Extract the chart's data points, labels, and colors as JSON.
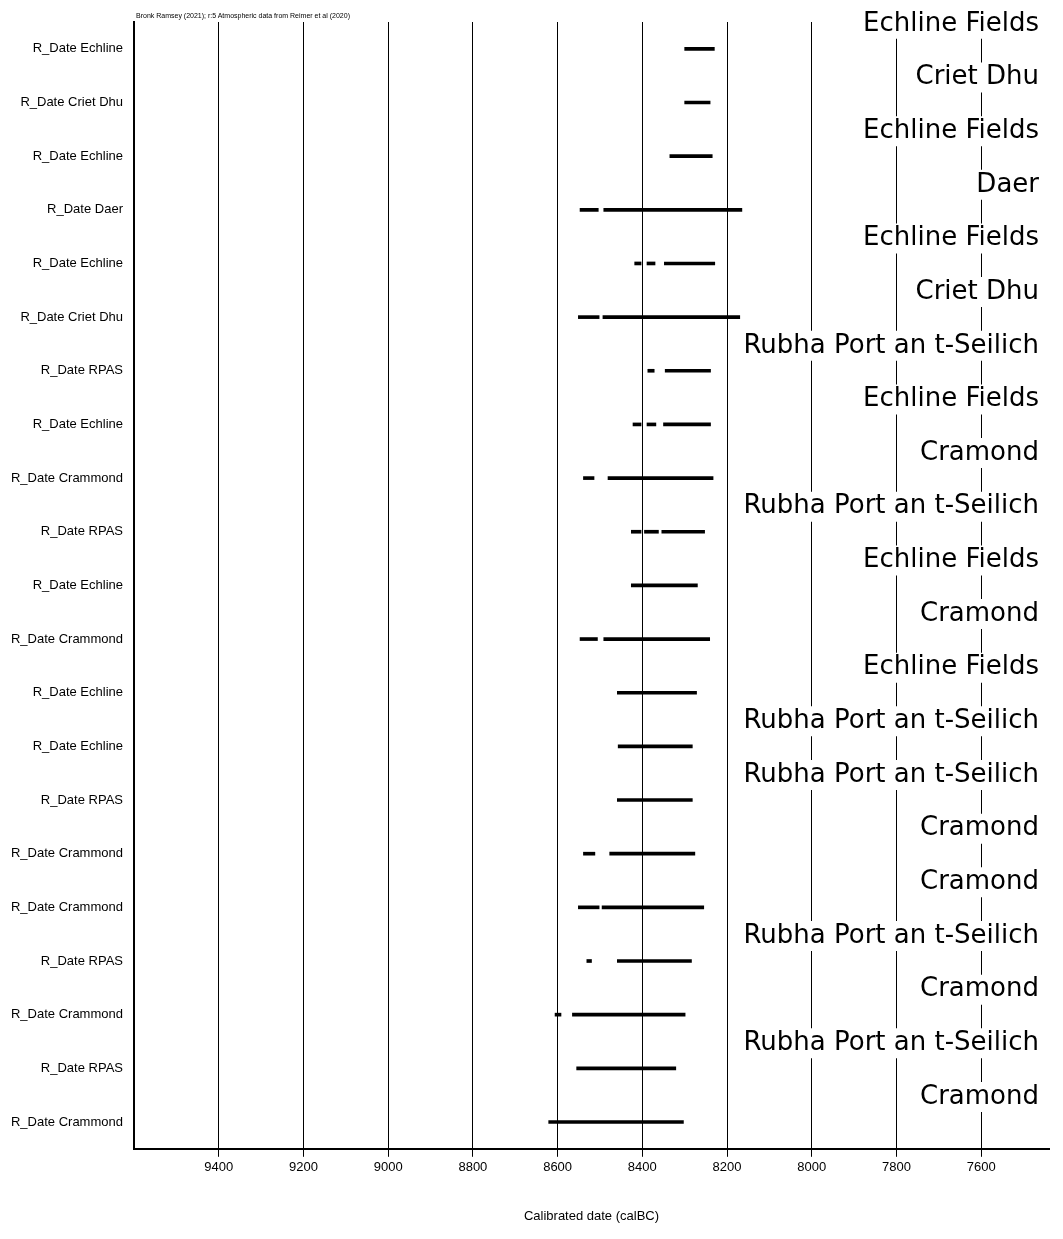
{
  "chart_data": {
    "type": "bar",
    "orientation": "horizontal",
    "xlabel": "Calibrated date (calBC)",
    "categories": [
      "R_Date Echline",
      "R_Date Criet Dhu",
      "R_Date Echline",
      "R_Date Daer",
      "R_Date Echline",
      "R_Date Criet Dhu",
      "R_Date RPAS",
      "R_Date Echline",
      "R_Date Crammond",
      "R_Date RPAS",
      "R_Date Echline",
      "R_Date Crammond",
      "R_Date Echline",
      "R_Date Echline",
      "R_Date RPAS",
      "R_Date Crammond",
      "R_Date Crammond",
      "R_Date RPAS",
      "R_Date Crammond",
      "R_Date RPAS",
      "R_Date Crammond"
    ],
    "series": [
      {
        "color": "#000000",
        "base": [
          8230,
          8240,
          8235,
          8504,
          8403,
          8502,
          8372,
          8403,
          8514,
          8403,
          8270,
          8506,
          8272,
          8282,
          8282,
          8512,
          8502,
          8520,
          8592,
          8321,
          8303
        ],
        "values": [
          70,
          60,
          100,
          43,
          15,
          49,
          15,
          19,
          25,
          23,
          156,
          41,
          187,
          175,
          177,
          27,
          49,
          11,
          14,
          234,
          318
        ]
      },
      {
        "color": "#000000",
        "base": [
          null,
          null,
          null,
          8165,
          8370,
          8170,
          8239,
          8368,
          8233,
          8362,
          null,
          8241,
          null,
          null,
          null,
          8276,
          8255,
          8284,
          8299,
          null,
          null
        ],
        "values": [
          null,
          null,
          null,
          326,
          19,
          323,
          107,
          21,
          248,
          33,
          null,
          250,
          null,
          null,
          null,
          201,
          240,
          175,
          266,
          null,
          null
        ]
      },
      {
        "color": "#000000",
        "base": [
          null,
          null,
          null,
          null,
          8229,
          null,
          null,
          8239,
          null,
          8253,
          null,
          null,
          null,
          null,
          null,
          null,
          null,
          null,
          null,
          null,
          null
        ],
        "values": [
          null,
          null,
          null,
          null,
          119,
          null,
          null,
          111,
          null,
          101,
          null,
          null,
          null,
          null,
          null,
          null,
          null,
          null,
          null,
          null,
          null
        ]
      }
    ],
    "xlim": [
      9600,
      7440
    ],
    "xticks": [
      9400,
      9200,
      9000,
      8800,
      8600,
      8400,
      8200,
      8000,
      7800,
      7600
    ],
    "grid": "x",
    "annotations": [
      "Bronk Ramsey (2021); r:5 Atmospheric data from Reimer et al (2020)",
      "Echline Fields",
      "Criet Dhu",
      "Echline Fields",
      "Daer",
      "Echline Fields",
      "Criet Dhu",
      "Rubha Port an t-Seilich",
      "Echline Fields",
      "Cramond",
      "Rubha Port an t-Seilich",
      "Echline Fields",
      "Cramond",
      "Echline Fields",
      "Rubha Port an t-Seilich",
      "Rubha Port an t-Seilich",
      "Cramond",
      "Cramond",
      "Rubha Port an t-Seilich",
      "Cramond",
      "Rubha Port an t-Seilich",
      "Cramond"
    ]
  }
}
